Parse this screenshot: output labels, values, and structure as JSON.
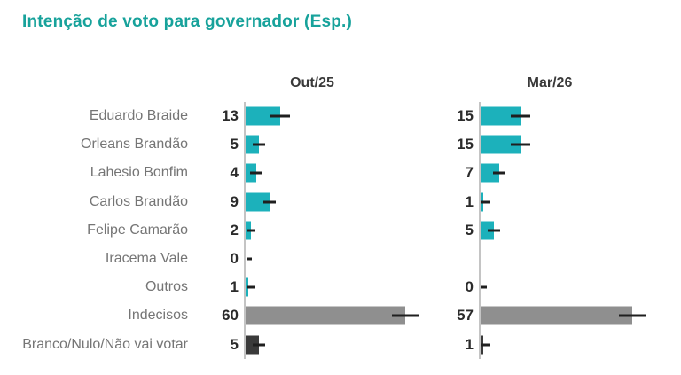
{
  "title": "Intenção de voto para governador (Esp.)",
  "colors": {
    "title": "#17a29b",
    "bar_teal": "#1cb1bb",
    "bar_gray": "#8f8f8f",
    "bar_dark": "#3a3a3a",
    "label_gray": "#757575",
    "value_dark": "#2b2b2b",
    "header_dark": "#3a3a3a",
    "axis_gray": "#c4c4c4",
    "error_dark": "#1f1f1f"
  },
  "chart_data": {
    "type": "bar",
    "orientation": "horizontal",
    "title": "Intenção de voto para governador (Esp.)",
    "categories": [
      "Eduardo Braide",
      "Orleans Brandão",
      "Lahesio Bonfim",
      "Carlos Brandão",
      "Felipe Camarão",
      "Iracema Vale",
      "Outros",
      "Indecisos",
      "Branco/Nulo/Não vai votar"
    ],
    "series": [
      {
        "name": "Out/25",
        "values": [
          13,
          5,
          4,
          9,
          2,
          0,
          1,
          60,
          5
        ]
      },
      {
        "name": "Mar/26",
        "values": [
          15,
          15,
          7,
          1,
          5,
          null,
          0,
          57,
          1
        ]
      }
    ],
    "row_colors": [
      "bar_teal",
      "bar_teal",
      "bar_teal",
      "bar_teal",
      "bar_teal",
      "bar_teal",
      "bar_teal",
      "bar_gray",
      "bar_dark"
    ],
    "value_labels_shown": true,
    "error_bars": true,
    "legend_position": "column-headers",
    "grid": false,
    "xlim": [
      0,
      65
    ]
  }
}
